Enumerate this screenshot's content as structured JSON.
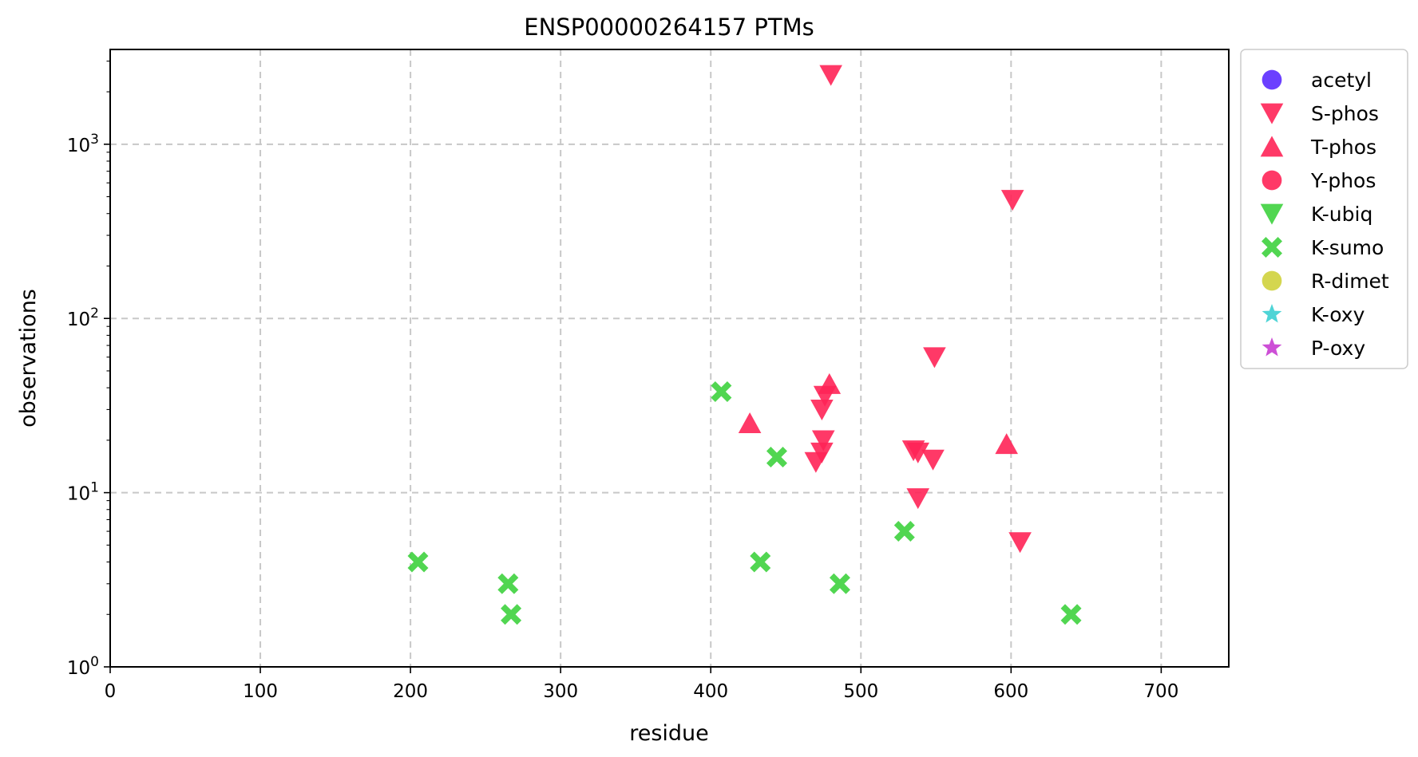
{
  "chart_data": {
    "type": "scatter",
    "title": "ENSP00000264157 PTMs",
    "xlabel": "residue",
    "ylabel": "observations",
    "xlim": [
      0,
      745
    ],
    "ylim": [
      1,
      3500
    ],
    "y_scale": "log",
    "grid": true,
    "legend_position": "outside-right-top",
    "x_ticks": [
      "0",
      "100",
      "200",
      "300",
      "400",
      "500",
      "600",
      "700"
    ],
    "x_tick_values": [
      0,
      100,
      200,
      300,
      400,
      500,
      600,
      700
    ],
    "y_ticks": [
      {
        "value": 1,
        "base": "10",
        "exp": "0"
      },
      {
        "value": 10,
        "base": "10",
        "exp": "1"
      },
      {
        "value": 100,
        "base": "10",
        "exp": "2"
      },
      {
        "value": 1000,
        "base": "10",
        "exp": "3"
      }
    ],
    "series": [
      {
        "name": "acetyl",
        "marker": "circle",
        "color": "#5b2bff",
        "points": []
      },
      {
        "name": "S-phos",
        "marker": "triangle-down",
        "color": "#ff2457",
        "points": [
          {
            "x": 480,
            "y": 2500
          },
          {
            "x": 601,
            "y": 480
          },
          {
            "x": 549,
            "y": 60
          },
          {
            "x": 476,
            "y": 36
          },
          {
            "x": 474,
            "y": 30
          },
          {
            "x": 475,
            "y": 20
          },
          {
            "x": 474,
            "y": 17
          },
          {
            "x": 470,
            "y": 15
          },
          {
            "x": 535,
            "y": 17.5
          },
          {
            "x": 538,
            "y": 17
          },
          {
            "x": 548,
            "y": 15.5
          },
          {
            "x": 538,
            "y": 9.3
          },
          {
            "x": 606,
            "y": 5.2
          }
        ]
      },
      {
        "name": "T-phos",
        "marker": "triangle-up",
        "color": "#ff2457",
        "points": [
          {
            "x": 479,
            "y": 42
          },
          {
            "x": 426,
            "y": 25
          },
          {
            "x": 597,
            "y": 19
          }
        ]
      },
      {
        "name": "Y-phos",
        "marker": "circle",
        "color": "#ff2457",
        "points": []
      },
      {
        "name": "K-ubiq",
        "marker": "triangle-down",
        "color": "#3ed13e",
        "points": []
      },
      {
        "name": "K-sumo",
        "marker": "x",
        "color": "#3ed13e",
        "points": [
          {
            "x": 407,
            "y": 38
          },
          {
            "x": 444,
            "y": 16
          },
          {
            "x": 205,
            "y": 4
          },
          {
            "x": 265,
            "y": 3
          },
          {
            "x": 267,
            "y": 2
          },
          {
            "x": 433,
            "y": 4
          },
          {
            "x": 486,
            "y": 3
          },
          {
            "x": 529,
            "y": 6
          },
          {
            "x": 640,
            "y": 2
          }
        ]
      },
      {
        "name": "R-dimet",
        "marker": "circle",
        "color": "#cfd23c",
        "points": []
      },
      {
        "name": "K-oxy",
        "marker": "star",
        "color": "#3ccfd2",
        "points": []
      },
      {
        "name": "P-oxy",
        "marker": "star",
        "color": "#c83cd2",
        "points": []
      }
    ]
  }
}
